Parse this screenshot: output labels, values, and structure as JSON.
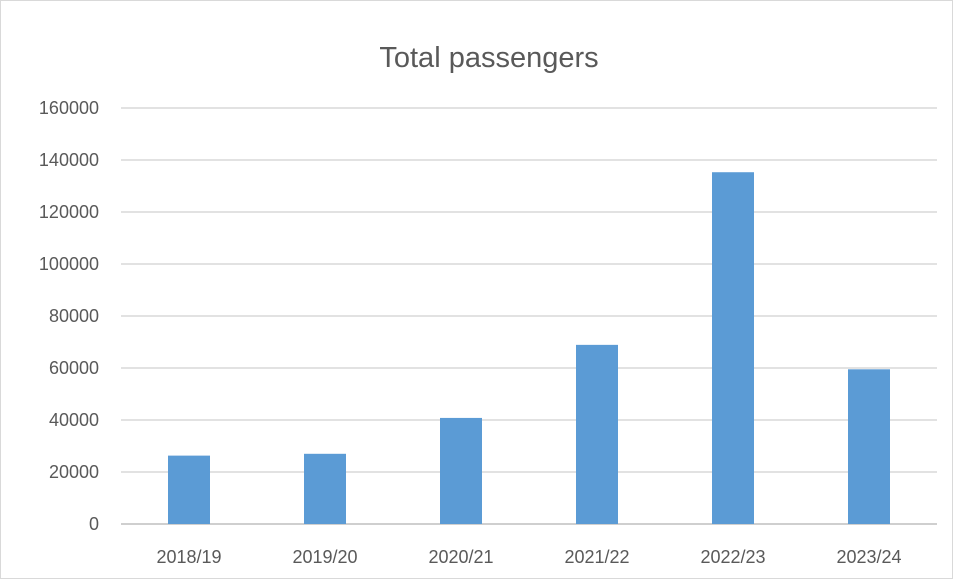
{
  "chart_data": {
    "type": "bar",
    "title": "Total passengers",
    "categories": [
      "2018/19",
      "2019/20",
      "2020/21",
      "2021/22",
      "2022/23",
      "2023/24"
    ],
    "values": [
      26300,
      27000,
      40800,
      68900,
      135300,
      59500
    ],
    "ylim": [
      0,
      160000
    ],
    "yticks": [
      0,
      20000,
      40000,
      60000,
      80000,
      100000,
      120000,
      140000,
      160000
    ],
    "ytick_labels": [
      "0",
      "20000",
      "40000",
      "60000",
      "80000",
      "100000",
      "120000",
      "140000",
      "160000"
    ],
    "grid": true,
    "legend": "none",
    "bar_color": "#5b9bd5"
  }
}
